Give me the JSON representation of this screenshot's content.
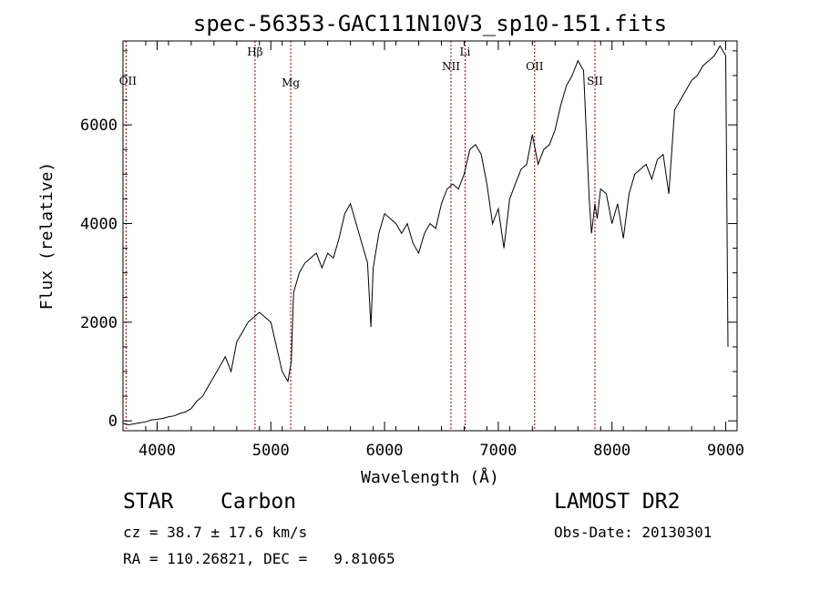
{
  "chart_data": {
    "type": "line",
    "title": "spec-56353-GAC111N10V3_sp10-151.fits",
    "xlabel": "Wavelength (Å)",
    "ylabel": "Flux (relative)",
    "xlim": [
      3700,
      9100
    ],
    "ylim": [
      -200,
      7700
    ],
    "xticks": [
      4000,
      5000,
      6000,
      7000,
      8000,
      9000
    ],
    "yticks": [
      0,
      2000,
      4000,
      6000
    ],
    "xtick_labels": [
      "4000",
      "5000",
      "6000",
      "7000",
      "8000",
      "9000"
    ],
    "ytick_labels": [
      "0",
      "2000",
      "4000",
      "6000"
    ],
    "line_color": "#000000",
    "marker_color": "#8b0000",
    "spectral_lines": [
      {
        "label": "OII",
        "x": 3727
      },
      {
        "label": "Hβ",
        "x": 4861
      },
      {
        "label": "Mg",
        "x": 5175
      },
      {
        "label": "NII",
        "x": 6584
      },
      {
        "label": "Li",
        "x": 6708
      },
      {
        "label": "OII",
        "x": 7320
      },
      {
        "label": "SII",
        "x": 7850
      }
    ],
    "series": [
      {
        "x": [
          3700,
          3750,
          3800,
          3850,
          3900,
          3950,
          4000,
          4050,
          4100,
          4150,
          4200,
          4250,
          4300,
          4350,
          4400,
          4450,
          4500,
          4550,
          4600,
          4650,
          4700,
          4750,
          4800,
          4850,
          4900,
          4950,
          5000,
          5050,
          5100,
          5150,
          5180,
          5200,
          5250,
          5300,
          5350,
          5400,
          5450,
          5500,
          5550,
          5600,
          5650,
          5700,
          5750,
          5800,
          5850,
          5880,
          5900,
          5950,
          6000,
          6050,
          6100,
          6150,
          6200,
          6250,
          6300,
          6350,
          6400,
          6450,
          6500,
          6550,
          6600,
          6650,
          6700,
          6750,
          6800,
          6850,
          6900,
          6950,
          7000,
          7050,
          7100,
          7150,
          7200,
          7250,
          7300,
          7350,
          7400,
          7450,
          7500,
          7550,
          7600,
          7650,
          7700,
          7750,
          7800,
          7820,
          7850,
          7870,
          7900,
          7950,
          8000,
          8050,
          8100,
          8150,
          8200,
          8250,
          8300,
          8350,
          8400,
          8450,
          8500,
          8550,
          8600,
          8650,
          8700,
          8750,
          8800,
          8850,
          8900,
          8950,
          9000,
          9020
        ],
        "y": [
          -50,
          -80,
          -60,
          -40,
          -20,
          20,
          30,
          50,
          80,
          100,
          150,
          180,
          250,
          400,
          500,
          700,
          900,
          1100,
          1300,
          1000,
          1600,
          1800,
          2000,
          2100,
          2200,
          2100,
          2000,
          1500,
          1000,
          800,
          1200,
          2600,
          3000,
          3200,
          3300,
          3400,
          3100,
          3400,
          3300,
          3700,
          4200,
          4400,
          4000,
          3600,
          3200,
          1900,
          3100,
          3800,
          4200,
          4100,
          4000,
          3800,
          4000,
          3600,
          3400,
          3800,
          4000,
          3900,
          4400,
          4700,
          4800,
          4700,
          5000,
          5500,
          5600,
          5400,
          4800,
          4000,
          4300,
          3500,
          4500,
          4800,
          5100,
          5200,
          5800,
          5200,
          5500,
          5600,
          5900,
          6400,
          6800,
          7000,
          7300,
          7100,
          4500,
          3800,
          4400,
          4100,
          4700,
          4600,
          4000,
          4400,
          3700,
          4600,
          5000,
          5100,
          5200,
          4900,
          5300,
          5400,
          4600,
          6300,
          6500,
          6700,
          6900,
          7000,
          7200,
          7300,
          7400,
          7600,
          7400,
          1500
        ]
      }
    ]
  },
  "footer": {
    "object_class": "STAR",
    "subclass": "Carbon",
    "survey": "LAMOST DR2",
    "cz": "cz = 38.7 ± 17.6 km/s",
    "obs_date": "Obs-Date: 20130301",
    "coords": "RA = 110.26821, DEC =   9.81065"
  }
}
